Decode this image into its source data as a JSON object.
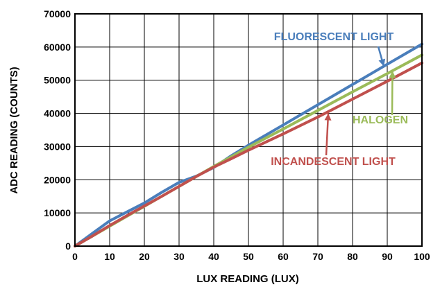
{
  "chart_data": {
    "type": "line",
    "title": "",
    "xlabel": "LUX READING (LUX)",
    "ylabel": "ADC READING (COUNTS)",
    "xlim": [
      0,
      100
    ],
    "ylim": [
      0,
      70000
    ],
    "x_ticks": [
      0,
      10,
      20,
      30,
      40,
      50,
      60,
      70,
      80,
      90,
      100
    ],
    "y_ticks": [
      0,
      10000,
      20000,
      30000,
      40000,
      50000,
      60000,
      70000
    ],
    "grid": true,
    "legend": "none",
    "series": [
      {
        "name": "FLUORESCENT LIGHT",
        "color": "#4a7ebb",
        "x": [
          0,
          5,
          10,
          15,
          20,
          25,
          30,
          35,
          40,
          45,
          50,
          60,
          70,
          80,
          90,
          100
        ],
        "y": [
          0,
          3800,
          7600,
          10300,
          13000,
          16200,
          19200,
          21100,
          23700,
          27200,
          30400,
          36500,
          42600,
          48700,
          54800,
          60900
        ]
      },
      {
        "name": "HALOGEN",
        "color": "#9bbb59",
        "x": [
          0,
          5,
          10,
          15,
          20,
          25,
          30,
          35,
          40,
          45,
          50,
          60,
          70,
          80,
          90,
          100
        ],
        "y": [
          0,
          3000,
          6000,
          9000,
          12000,
          15000,
          18000,
          21000,
          24000,
          26900,
          29800,
          35300,
          40900,
          46500,
          52000,
          57600
        ]
      },
      {
        "name": "INCANDESCENT LIGHT",
        "color": "#c0504d",
        "x": [
          0,
          5,
          10,
          15,
          20,
          25,
          30,
          35,
          40,
          45,
          50,
          60,
          70,
          80,
          90,
          100
        ],
        "y": [
          0,
          3000,
          6200,
          9200,
          12100,
          15000,
          18000,
          21000,
          23800,
          26300,
          28900,
          33800,
          38900,
          44300,
          49700,
          55200
        ]
      }
    ],
    "annotations": [
      {
        "text": "FLUORESCENT LIGHT",
        "series": 0,
        "arrow_to": [
          89,
          54200
        ]
      },
      {
        "text": "HALOGEN",
        "series": 1,
        "arrow_to": [
          91.5,
          52800
        ]
      },
      {
        "text": "INCANDESCENT LIGHT",
        "series": 2,
        "arrow_to": [
          73,
          40000
        ]
      }
    ]
  }
}
